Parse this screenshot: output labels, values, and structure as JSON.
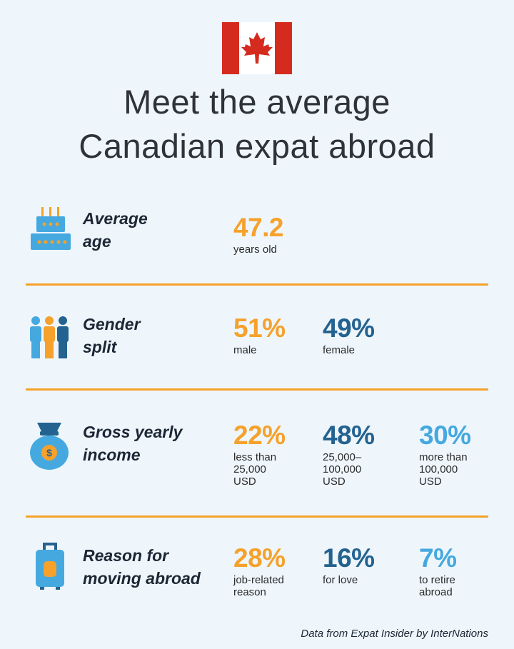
{
  "flag_icon": "canada-flag-icon",
  "title": {
    "line1": "Meet the average",
    "line2": "Canadian expat abroad"
  },
  "sections": {
    "age": {
      "icon": "birthday-cake-icon",
      "label_line1": "Average",
      "label_line2": "age",
      "stats": [
        {
          "value": "47.2",
          "desc": "years old"
        }
      ]
    },
    "gender": {
      "icon": "people-group-icon",
      "label_line1": "Gender",
      "label_line2": "split",
      "stats": [
        {
          "value": "51%",
          "desc": "male"
        },
        {
          "value": "49%",
          "desc": "female"
        }
      ]
    },
    "income": {
      "icon": "money-bag-icon",
      "label_line1": "Gross yearly",
      "label_line2": "income",
      "stats": [
        {
          "value": "22%",
          "desc_lines": [
            "less than",
            "25,000",
            "USD"
          ]
        },
        {
          "value": "48%",
          "desc_lines": [
            "25,000–",
            "100,000",
            "USD"
          ]
        },
        {
          "value": "30%",
          "desc_lines": [
            "more than",
            "100,000",
            "USD"
          ]
        }
      ]
    },
    "reason": {
      "icon": "suitcase-icon",
      "label_line1": "Reason for",
      "label_line2": "moving abroad",
      "stats": [
        {
          "value": "28%",
          "desc_lines": [
            "job-related",
            "reason"
          ]
        },
        {
          "value": "16%",
          "desc_lines": [
            "for love"
          ]
        },
        {
          "value": "7%",
          "desc_lines": [
            "to retire",
            "abroad"
          ]
        }
      ]
    }
  },
  "colors": {
    "orange": "#f5a12c",
    "dark_blue": "#24628f",
    "light_blue": "#45a9df",
    "flag_red": "#d52b1e"
  },
  "footer": "Data from Expat Insider by InterNations"
}
